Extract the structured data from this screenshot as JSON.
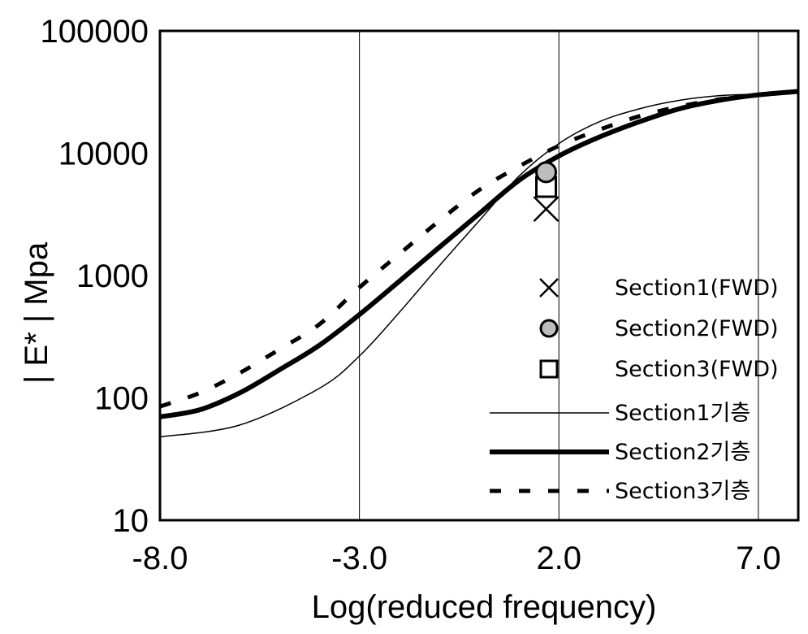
{
  "chart_data": {
    "type": "line",
    "title": "",
    "xlabel": "Log(reduced frequency)",
    "ylabel": "| E* | Mpa",
    "x_scale": "linear",
    "y_scale": "log",
    "xlim": [
      -8,
      8
    ],
    "ylim": [
      10,
      100000
    ],
    "x_ticks": [
      -8,
      -3,
      2,
      7
    ],
    "x_tick_labels": [
      "-8.0",
      "-3.0",
      "2.0",
      "7.0"
    ],
    "y_ticks": [
      10,
      100,
      1000,
      10000,
      100000
    ],
    "y_tick_labels": [
      "10",
      "100",
      "1000",
      "10000",
      "100000"
    ],
    "grid": "vertical lines at x ticks",
    "legend_position": "bottom-right",
    "series": [
      {
        "name": "Section1(FWD)",
        "kind": "marker",
        "marker": "x",
        "points": [
          [
            1.7,
            3500
          ]
        ]
      },
      {
        "name": "Section2(FWD)",
        "kind": "marker",
        "marker": "circle",
        "fill": "#bdbdbd",
        "points": [
          [
            1.7,
            7000
          ]
        ]
      },
      {
        "name": "Section3(FWD)",
        "kind": "marker",
        "marker": "square",
        "points": [
          [
            1.7,
            5300
          ]
        ]
      },
      {
        "name": "Section1기층",
        "kind": "line",
        "style": "thin",
        "points": [
          [
            -8,
            48
          ],
          [
            -6,
            60
          ],
          [
            -4,
            120
          ],
          [
            -3,
            220
          ],
          [
            -2,
            500
          ],
          [
            -1,
            1200
          ],
          [
            0,
            2800
          ],
          [
            1,
            6500
          ],
          [
            2,
            12000
          ],
          [
            3,
            18000
          ],
          [
            4,
            23000
          ],
          [
            5,
            27000
          ],
          [
            6,
            29500
          ],
          [
            7,
            30500
          ],
          [
            8,
            32000
          ]
        ]
      },
      {
        "name": "Section2기층",
        "kind": "line",
        "style": "thick",
        "points": [
          [
            -8,
            70
          ],
          [
            -7,
            80
          ],
          [
            -6,
            110
          ],
          [
            -5,
            170
          ],
          [
            -4,
            270
          ],
          [
            -3,
            480
          ],
          [
            -2,
            900
          ],
          [
            -1,
            1700
          ],
          [
            0,
            3200
          ],
          [
            1,
            6000
          ],
          [
            2,
            9500
          ],
          [
            3,
            13500
          ],
          [
            4,
            18000
          ],
          [
            5,
            23000
          ],
          [
            6,
            27000
          ],
          [
            7,
            30000
          ],
          [
            8,
            32000
          ]
        ]
      },
      {
        "name": "Section3기층",
        "kind": "line",
        "style": "dashed",
        "points": [
          [
            -8,
            85
          ],
          [
            -7,
            110
          ],
          [
            -6,
            160
          ],
          [
            -5,
            250
          ],
          [
            -4,
            400
          ],
          [
            -3,
            800
          ],
          [
            -2,
            1500
          ],
          [
            -1,
            2800
          ],
          [
            0,
            5000
          ],
          [
            1,
            7800
          ],
          [
            2,
            11500
          ],
          [
            3,
            15500
          ],
          [
            4,
            20000
          ],
          [
            5,
            24000
          ],
          [
            6,
            27500
          ],
          [
            7,
            30000
          ],
          [
            8,
            32000
          ]
        ]
      }
    ]
  }
}
